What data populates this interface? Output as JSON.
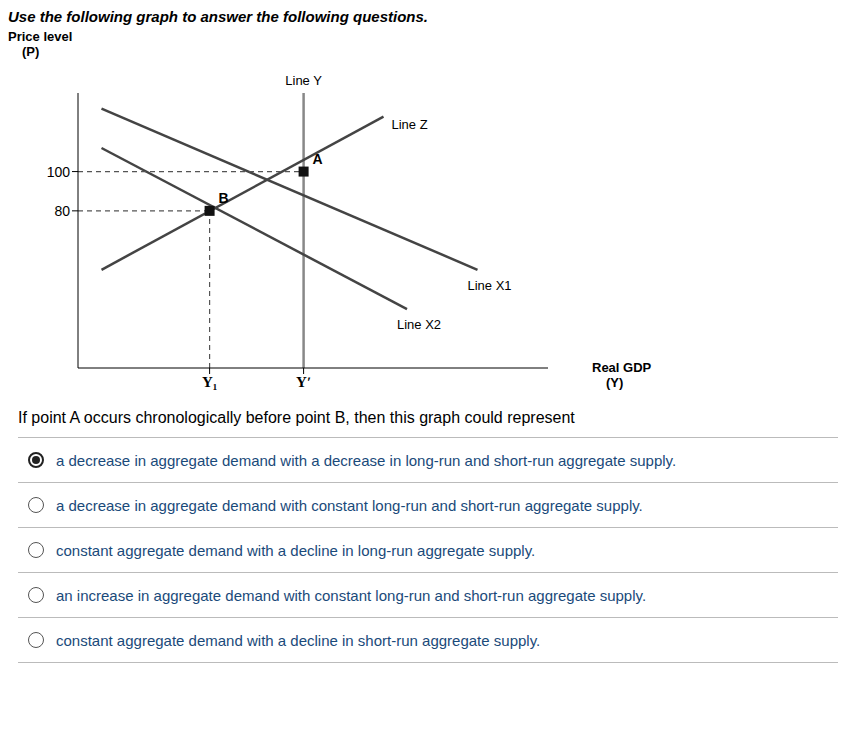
{
  "chart_data": {
    "type": "line",
    "title": "Use the following graph to answer the following questions.",
    "x_label": [
      "Real GDP",
      "(Y)"
    ],
    "y_label": [
      "Price level",
      "(P)"
    ],
    "xlim": [
      0,
      10
    ],
    "ylim": [
      0,
      140
    ],
    "xticks": [
      {
        "value": 2.8,
        "label": "Y₁"
      },
      {
        "value": 4.8,
        "label": "Yʹ"
      }
    ],
    "yticks": [
      80,
      100
    ],
    "series": [
      {
        "name": "Line Y",
        "color": "#888888",
        "x": [
          4.8,
          4.8
        ],
        "values": [
          0,
          140
        ]
      },
      {
        "name": "Line Z",
        "color": "#444444",
        "x": [
          0.5,
          6.5
        ],
        "values": [
          50,
          128
        ]
      },
      {
        "name": "Line X1",
        "color": "#444444",
        "x": [
          0.5,
          8.5
        ],
        "values": [
          132,
          50
        ]
      },
      {
        "name": "Line X2",
        "color": "#444444",
        "x": [
          0.5,
          7.0
        ],
        "values": [
          112,
          30
        ]
      },
      {
        "color": "#555555",
        "line_style": "dashed",
        "x": [
          0,
          4.8
        ],
        "values": [
          100,
          100
        ]
      },
      {
        "color": "#555555",
        "line_style": "dashed",
        "x": [
          0,
          2.8
        ],
        "values": [
          80,
          80
        ]
      },
      {
        "color": "#555555",
        "line_style": "dashed",
        "x": [
          2.8,
          2.8
        ],
        "values": [
          0,
          80
        ]
      },
      {
        "type": "scatter",
        "color": "#111111",
        "marker": "square",
        "x": [
          4.8,
          2.8
        ],
        "values": [
          100,
          80
        ]
      }
    ],
    "annotations": [
      {
        "text": "A",
        "x": 4.8,
        "y": 100
      },
      {
        "text": "B",
        "x": 2.8,
        "y": 80
      }
    ],
    "question": "If point A occurs chronologically before point B, then this graph could represent",
    "options": [
      "a decrease in aggregate demand with a decrease in long-run and short-run aggregate supply.",
      "a decrease in aggregate demand with constant long-run and short-run aggregate supply.",
      "constant aggregate demand with a decline in long-run aggregate supply.",
      "an increase in aggregate demand with constant long-run and short-run aggregate supply.",
      "constant aggregate demand with a decline in short-run aggregate supply."
    ],
    "selected_option": 0,
    "option_color": "#1a4a7a"
  }
}
